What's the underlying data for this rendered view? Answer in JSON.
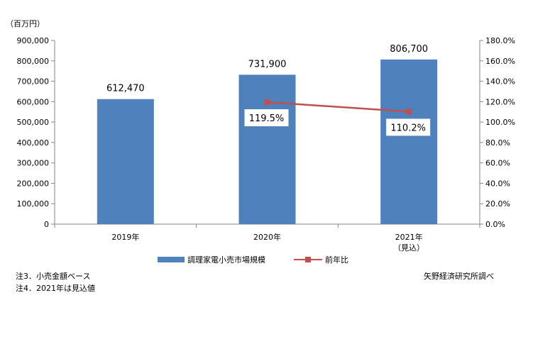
{
  "chart_data": {
    "type": "bar+line",
    "unit_label": "（百万円）",
    "categories": [
      "2019年",
      "2020年",
      "2021年"
    ],
    "category_notes": [
      "",
      "",
      "（見込）"
    ],
    "series": [
      {
        "name": "調理家電小売市場規模",
        "type": "bar",
        "axis": "left",
        "values": [
          612470,
          731900,
          806700
        ],
        "labels": [
          "612,470",
          "731,900",
          "806,700"
        ],
        "color": "#4F81BD"
      },
      {
        "name": "前年比",
        "type": "line",
        "axis": "right",
        "values": [
          null,
          119.5,
          110.2
        ],
        "labels": [
          "",
          "119.5%",
          "110.2%"
        ],
        "color": "#C0504D"
      }
    ],
    "y_left": {
      "min": 0,
      "max": 900000,
      "ticks": [
        "0",
        "100,000",
        "200,000",
        "300,000",
        "400,000",
        "500,000",
        "600,000",
        "700,000",
        "800,000",
        "900,000"
      ]
    },
    "y_right": {
      "min": 0,
      "max": 180,
      "ticks": [
        "0.0%",
        "20.0%",
        "40.0%",
        "60.0%",
        "80.0%",
        "100.0%",
        "120.0%",
        "140.0%",
        "160.0%",
        "180.0%"
      ]
    },
    "grid": false,
    "legend": "bottom"
  },
  "notes": {
    "note3": "注3．小売金額ベース",
    "note4": "注4．2021年は見込値",
    "source": "矢野経済研究所調べ"
  }
}
